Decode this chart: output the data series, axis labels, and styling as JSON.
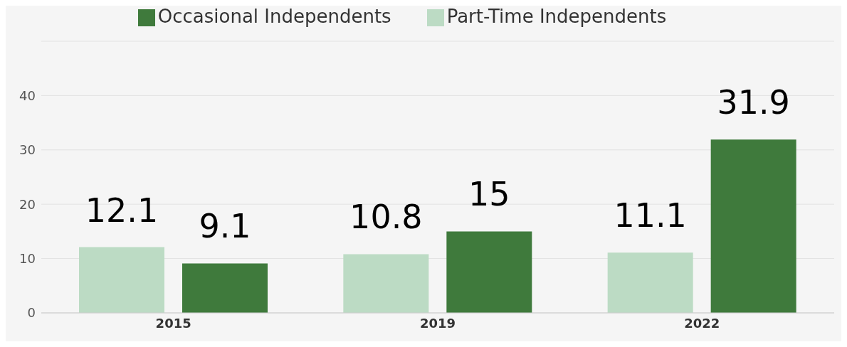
{
  "chart_data": {
    "type": "bar",
    "categories": [
      "2015",
      "2019",
      "2022"
    ],
    "series": [
      {
        "name": "Part-Time Independents",
        "color": "#bcdbc4",
        "values": [
          12.1,
          10.8,
          11.1
        ]
      },
      {
        "name": "Occasional Independents",
        "color": "#3f7a3c",
        "values": [
          9.1,
          15,
          31.9
        ]
      }
    ],
    "ylim": [
      0,
      50
    ],
    "yticks": [
      0,
      10,
      20,
      30,
      40,
      {
        "value": 50,
        "label": null
      }
    ],
    "grid": "y",
    "legend": "top",
    "data_labels": true
  }
}
